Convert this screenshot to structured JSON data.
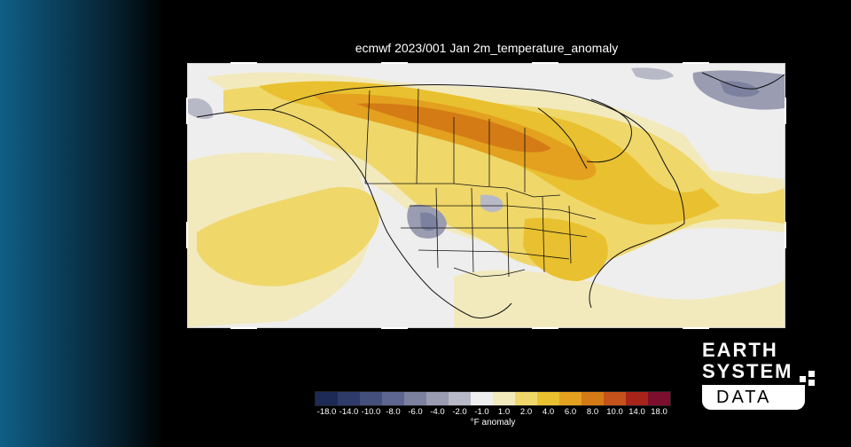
{
  "map": {
    "title": "ecmwf 2023/001 Jan 2m_temperature_anomaly",
    "variable": "2m_temperature_anomaly",
    "region": "North America"
  },
  "legend": {
    "unit_label": "°F anomaly",
    "ticks": [
      "-18.0",
      "-14.0",
      "-10.0",
      "-8.0",
      "-6.0",
      "-4.0",
      "-2.0",
      "-1.0",
      "1.0",
      "2.0",
      "4.0",
      "6.0",
      "8.0",
      "10.0",
      "14.0",
      "18.0"
    ],
    "colors": [
      "#1c2a55",
      "#2e3a6a",
      "#454f7c",
      "#5d6690",
      "#7c819f",
      "#9a9cb2",
      "#b8b9c6",
      "#eeeeee",
      "#f2eabd",
      "#efd76a",
      "#e9c02f",
      "#e3a11f",
      "#d47b15",
      "#c4521a",
      "#a8241b",
      "#7d0f2e"
    ]
  },
  "colors": {
    "background": "#000000",
    "gradient_start": "#0f5f86",
    "neutral": "#eeeeee",
    "ocean_pale": "#f2eabd"
  },
  "branding": {
    "line1": "EARTH",
    "line2": "SYSTEM",
    "line3": "DATA"
  }
}
